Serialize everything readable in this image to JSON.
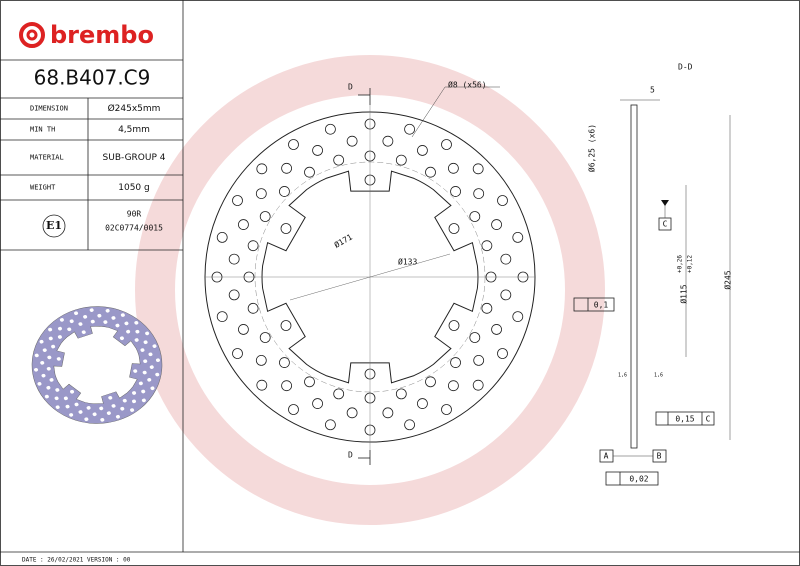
{
  "header": {
    "logo": "brembo",
    "part_number": "68.B407.C9"
  },
  "specs": {
    "rows": [
      [
        "DIMENSION",
        "Ø245x5mm"
      ],
      [
        "MIN TH",
        "4,5mm"
      ],
      [
        "MATERIAL",
        "SUB-GROUP 4"
      ],
      [
        "WEIGHT",
        "1050 g"
      ]
    ]
  },
  "homologation": {
    "mark": "E1",
    "lines": [
      "90R",
      "02C0774/0015"
    ]
  },
  "footer": "DATE : 26/02/2021 VERSION : 00",
  "drawing": {
    "section_marks": [
      "D",
      "D"
    ],
    "hole_callout": "Ø8 (x56)",
    "diameter_outer_ring": "Ø171",
    "diameter_inner": "Ø133"
  },
  "section": {
    "title": "D-D",
    "thickness": "5",
    "bolt_holes": "Ø6,25 (x6)",
    "datum_c": "C",
    "bore": "Ø115",
    "bore_tol_upper": "+0,26",
    "bore_tol_lower": "+0,12",
    "outer": "Ø245",
    "flatness": "0,1",
    "roughness": [
      "1,6",
      "1,6"
    ],
    "runout": "0,15",
    "runout_datum": "C",
    "datum_a": "A",
    "datum_b": "B",
    "parallelism": "0,02"
  }
}
